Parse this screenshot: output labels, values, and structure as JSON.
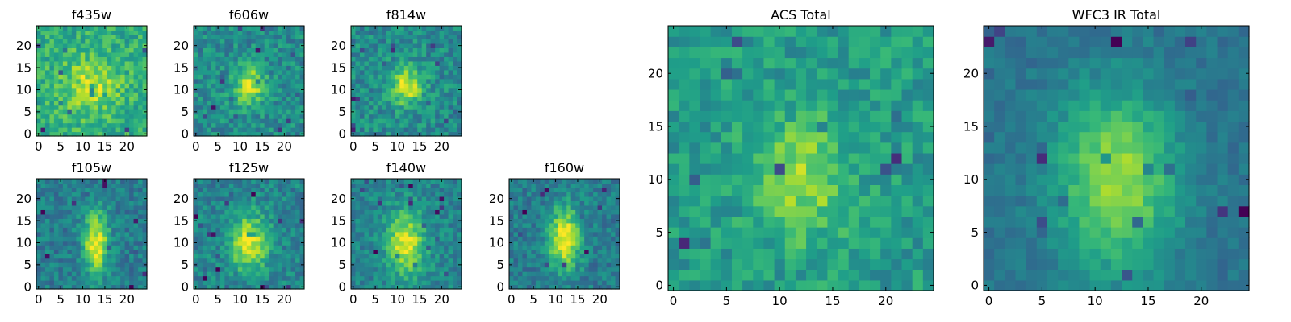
{
  "figure": {
    "colormap": "viridis",
    "colormap_stops": [
      "#440154",
      "#482878",
      "#3e4989",
      "#31688e",
      "#26828e",
      "#1f9e89",
      "#35b779",
      "#6ece58",
      "#b5de2b",
      "#fde725"
    ]
  },
  "chart_data": [
    {
      "type": "heatmap",
      "title": "f435w",
      "grid_size": 25,
      "xlim": [
        0,
        24
      ],
      "ylim": [
        0,
        24
      ],
      "xticks": [
        0,
        5,
        10,
        15,
        20
      ],
      "yticks": [
        0,
        5,
        10,
        15,
        20
      ],
      "source_center": [
        12,
        11
      ],
      "source_sigma": [
        4.5,
        4.5
      ],
      "source_peak": 0.9,
      "background": 0.62,
      "noise": 0.3,
      "seed": 1
    },
    {
      "type": "heatmap",
      "title": "f606w",
      "grid_size": 25,
      "xlim": [
        0,
        24
      ],
      "ylim": [
        0,
        24
      ],
      "xticks": [
        0,
        5,
        10,
        15,
        20
      ],
      "yticks": [
        0,
        5,
        10,
        15,
        20
      ],
      "source_center": [
        12,
        11
      ],
      "source_sigma": [
        2.5,
        3
      ],
      "source_peak": 0.95,
      "background": 0.48,
      "noise": 0.3,
      "seed": 2
    },
    {
      "type": "heatmap",
      "title": "f814w",
      "grid_size": 25,
      "xlim": [
        0,
        24
      ],
      "ylim": [
        0,
        24
      ],
      "xticks": [
        0,
        5,
        10,
        15,
        20
      ],
      "yticks": [
        0,
        5,
        10,
        15,
        20
      ],
      "source_center": [
        12,
        11
      ],
      "source_sigma": [
        2.5,
        3
      ],
      "source_peak": 0.95,
      "background": 0.48,
      "noise": 0.3,
      "seed": 3
    },
    {
      "type": "heatmap",
      "title": "f105w",
      "grid_size": 25,
      "xlim": [
        0,
        24
      ],
      "ylim": [
        0,
        24
      ],
      "xticks": [
        0,
        5,
        10,
        15,
        20
      ],
      "yticks": [
        0,
        5,
        10,
        15,
        20
      ],
      "source_center": [
        13,
        10
      ],
      "source_sigma": [
        2,
        5
      ],
      "source_peak": 1.0,
      "background": 0.42,
      "noise": 0.25,
      "seed": 4
    },
    {
      "type": "heatmap",
      "title": "f125w",
      "grid_size": 25,
      "xlim": [
        0,
        24
      ],
      "ylim": [
        0,
        24
      ],
      "xticks": [
        0,
        5,
        10,
        15,
        20
      ],
      "yticks": [
        0,
        5,
        10,
        15,
        20
      ],
      "source_center": [
        12,
        10
      ],
      "source_sigma": [
        3,
        4.5
      ],
      "source_peak": 0.95,
      "background": 0.45,
      "noise": 0.27,
      "seed": 5
    },
    {
      "type": "heatmap",
      "title": "f140w",
      "grid_size": 25,
      "xlim": [
        0,
        24
      ],
      "ylim": [
        0,
        24
      ],
      "xticks": [
        0,
        5,
        10,
        15,
        20
      ],
      "yticks": [
        0,
        5,
        10,
        15,
        20
      ],
      "source_center": [
        12,
        10
      ],
      "source_sigma": [
        3,
        5
      ],
      "source_peak": 0.95,
      "background": 0.45,
      "noise": 0.25,
      "seed": 6
    },
    {
      "type": "heatmap",
      "title": "f160w",
      "grid_size": 25,
      "xlim": [
        0,
        24
      ],
      "ylim": [
        0,
        24
      ],
      "xticks": [
        0,
        5,
        10,
        15,
        20
      ],
      "yticks": [
        0,
        5,
        10,
        15,
        20
      ],
      "source_center": [
        12,
        11
      ],
      "source_sigma": [
        2.5,
        5
      ],
      "source_peak": 1.0,
      "background": 0.42,
      "noise": 0.25,
      "seed": 7
    },
    {
      "type": "heatmap",
      "title": "ACS Total",
      "grid_size": 25,
      "xlim": [
        0,
        24
      ],
      "ylim": [
        0,
        24
      ],
      "xticks": [
        0,
        5,
        10,
        15,
        20
      ],
      "yticks": [
        0,
        5,
        10,
        15,
        20
      ],
      "source_center": [
        12,
        10
      ],
      "source_sigma": [
        3,
        4
      ],
      "source_peak": 0.85,
      "background": 0.55,
      "noise": 0.25,
      "seed": 8
    },
    {
      "type": "heatmap",
      "title": "WFC3 IR Total",
      "grid_size": 25,
      "xlim": [
        0,
        24
      ],
      "ylim": [
        0,
        24
      ],
      "xticks": [
        0,
        5,
        10,
        15,
        20
      ],
      "yticks": [
        0,
        5,
        10,
        15,
        20
      ],
      "source_center": [
        12,
        10
      ],
      "source_sigma": [
        4,
        6
      ],
      "source_peak": 0.85,
      "background": 0.38,
      "noise": 0.14,
      "seed": 9
    }
  ]
}
